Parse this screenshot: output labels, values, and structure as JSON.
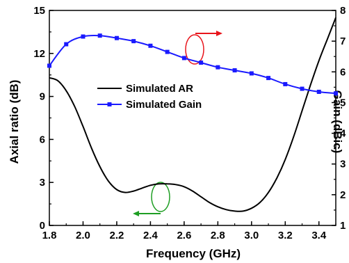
{
  "chart_data": {
    "type": "line",
    "xlabel": "Frequency (GHz)",
    "ylabel_left": "Axial ratio (dB)",
    "ylabel_right": "Gain (dBic)",
    "xlim": [
      1.8,
      3.5
    ],
    "ylim_left": [
      0,
      15
    ],
    "ylim_right": [
      1,
      8
    ],
    "x_ticks": [
      "1.8",
      "2.0",
      "2.2",
      "2.4",
      "2.6",
      "2.8",
      "3.0",
      "3.2",
      "3.4"
    ],
    "y_left_ticks": [
      "0",
      "3",
      "6",
      "9",
      "12",
      "15"
    ],
    "y_right_ticks": [
      "1",
      "2",
      "3",
      "4",
      "5",
      "6",
      "7",
      "8"
    ],
    "legend": [
      "Simulated AR",
      "Simulated Gain"
    ],
    "series": [
      {
        "name": "Simulated AR",
        "axis": "left",
        "color": "#000000",
        "marker": "none",
        "x": [
          1.8,
          1.85,
          1.9,
          1.95,
          2.0,
          2.05,
          2.1,
          2.15,
          2.2,
          2.25,
          2.3,
          2.35,
          2.4,
          2.45,
          2.5,
          2.55,
          2.6,
          2.65,
          2.7,
          2.75,
          2.8,
          2.85,
          2.9,
          2.95,
          3.0,
          3.05,
          3.1,
          3.15,
          3.2,
          3.25,
          3.3,
          3.35,
          3.4,
          3.45,
          3.5
        ],
        "y": [
          10.3,
          10.1,
          9.4,
          8.3,
          6.9,
          5.4,
          4.1,
          3.1,
          2.5,
          2.3,
          2.4,
          2.6,
          2.8,
          2.9,
          2.9,
          2.85,
          2.7,
          2.4,
          2.0,
          1.6,
          1.3,
          1.1,
          1.0,
          1.0,
          1.2,
          1.6,
          2.3,
          3.3,
          4.6,
          6.2,
          8.0,
          9.8,
          11.5,
          13.0,
          14.5
        ]
      },
      {
        "name": "Simulated Gain",
        "axis": "right",
        "color": "#1a1aff",
        "marker": "square",
        "x": [
          1.8,
          1.9,
          2.0,
          2.1,
          2.2,
          2.3,
          2.4,
          2.5,
          2.6,
          2.7,
          2.8,
          2.9,
          3.0,
          3.1,
          3.2,
          3.3,
          3.4,
          3.5
        ],
        "y": [
          6.2,
          6.9,
          7.15,
          7.18,
          7.1,
          7.0,
          6.85,
          6.65,
          6.45,
          6.3,
          6.15,
          6.05,
          5.95,
          5.8,
          5.6,
          5.45,
          5.35,
          5.3
        ]
      }
    ]
  }
}
